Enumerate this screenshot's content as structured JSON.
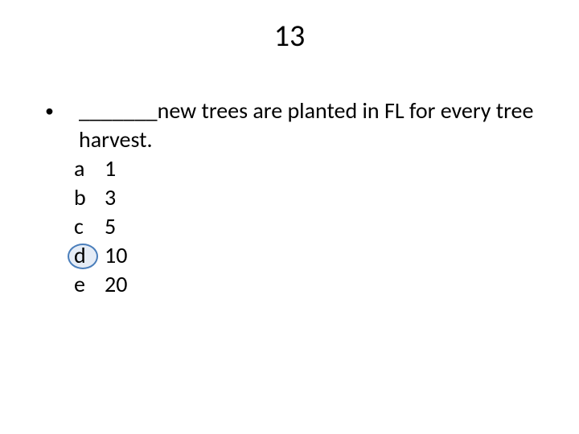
{
  "title": "13",
  "question": "_______new trees are planted in FL for every tree harvest.",
  "options": [
    {
      "letter": "a",
      "value": "1"
    },
    {
      "letter": "b",
      "value": "3"
    },
    {
      "letter": "c",
      "value": "5"
    },
    {
      "letter": "d",
      "value": "10"
    },
    {
      "letter": "e",
      "value": "20"
    }
  ],
  "correct_index": 3,
  "colors": {
    "text": "#000000",
    "background": "#ffffff",
    "circle_border": "#4a7ebb",
    "circle_fill": "rgba(180,200,230,0.35)"
  },
  "fonts": {
    "title_size_pt": 38,
    "body_size_pt": 28,
    "family": "Calibri"
  }
}
